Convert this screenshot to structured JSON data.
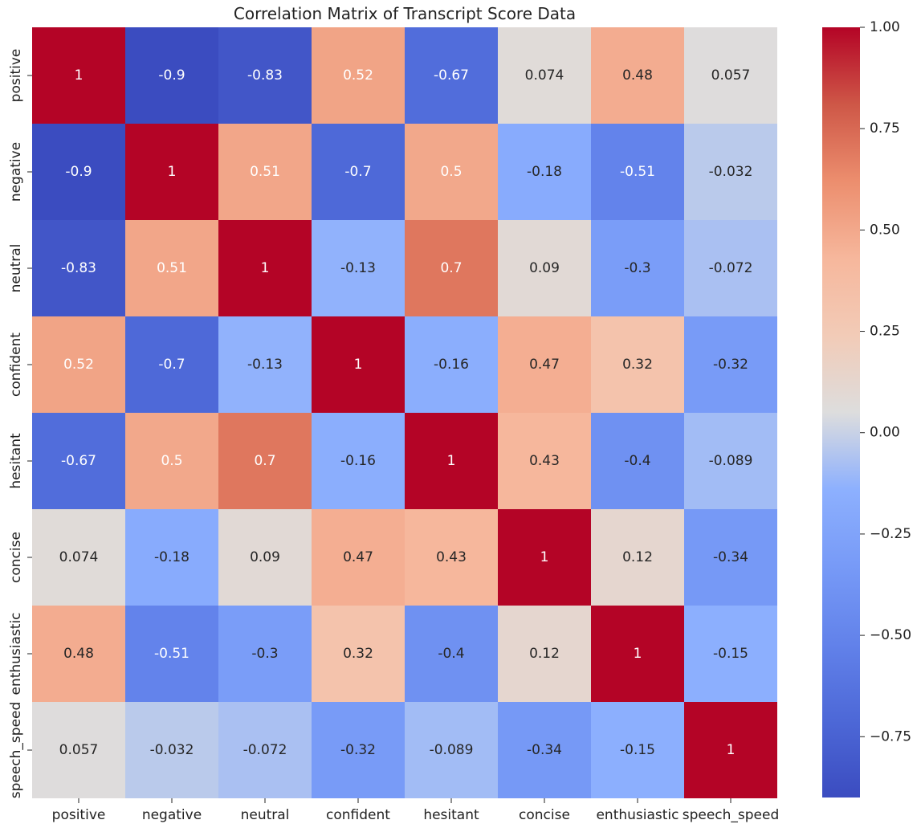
{
  "chart_data": {
    "type": "heatmap",
    "title": "Correlation Matrix of Transcript Score Data",
    "xlabel": "",
    "ylabel": "",
    "x_categories": [
      "positive",
      "negative",
      "neutral",
      "confident",
      "hesitant",
      "concise",
      "enthusiastic",
      "speech_speed"
    ],
    "y_categories": [
      "positive",
      "negative",
      "neutral",
      "confident",
      "hesitant",
      "concise",
      "enthusiastic",
      "speech_speed"
    ],
    "matrix": [
      [
        1,
        -0.9,
        -0.83,
        0.52,
        -0.67,
        0.074,
        0.48,
        0.057
      ],
      [
        -0.9,
        1,
        0.51,
        -0.7,
        0.5,
        -0.18,
        -0.51,
        -0.032
      ],
      [
        -0.83,
        0.51,
        1,
        -0.13,
        0.7,
        0.09,
        -0.3,
        -0.072
      ],
      [
        0.52,
        -0.7,
        -0.13,
        1,
        -0.16,
        0.47,
        0.32,
        -0.32
      ],
      [
        -0.67,
        0.5,
        0.7,
        -0.16,
        1,
        0.43,
        -0.4,
        -0.089
      ],
      [
        0.074,
        -0.18,
        0.09,
        0.47,
        0.43,
        1,
        0.12,
        -0.34
      ],
      [
        0.48,
        -0.51,
        -0.3,
        0.32,
        -0.4,
        0.12,
        1,
        -0.15
      ],
      [
        0.057,
        -0.032,
        -0.072,
        -0.32,
        -0.089,
        -0.34,
        -0.15,
        1
      ]
    ],
    "cell_labels": [
      [
        "1",
        "-0.9",
        "-0.83",
        "0.52",
        "-0.67",
        "0.074",
        "0.48",
        "0.057"
      ],
      [
        "-0.9",
        "1",
        "0.51",
        "-0.7",
        "0.5",
        "-0.18",
        "-0.51",
        "-0.032"
      ],
      [
        "-0.83",
        "0.51",
        "1",
        "-0.13",
        "0.7",
        "0.09",
        "-0.3",
        "-0.072"
      ],
      [
        "0.52",
        "-0.7",
        "-0.13",
        "1",
        "-0.16",
        "0.47",
        "0.32",
        "-0.32"
      ],
      [
        "-0.67",
        "0.5",
        "0.7",
        "-0.16",
        "1",
        "0.43",
        "-0.4",
        "-0.089"
      ],
      [
        "0.074",
        "-0.18",
        "0.09",
        "0.47",
        "0.43",
        "1",
        "0.12",
        "-0.34"
      ],
      [
        "0.48",
        "-0.51",
        "-0.3",
        "0.32",
        "-0.4",
        "0.12",
        "1",
        "-0.15"
      ],
      [
        "0.057",
        "-0.032",
        "-0.072",
        "-0.32",
        "-0.089",
        "-0.34",
        "-0.15",
        "1"
      ]
    ],
    "colormap": "coolwarm",
    "color_range": [
      -0.9,
      1.0
    ],
    "colorbar_ticks": [
      1.0,
      0.75,
      0.5,
      0.25,
      0.0,
      -0.25,
      -0.5,
      -0.75
    ],
    "colorbar_tick_labels": [
      "1.00",
      "0.75",
      "0.50",
      "0.25",
      "0.00",
      "−0.25",
      "−0.50",
      "−0.75"
    ],
    "grid": false,
    "legend": "right colorbar"
  }
}
